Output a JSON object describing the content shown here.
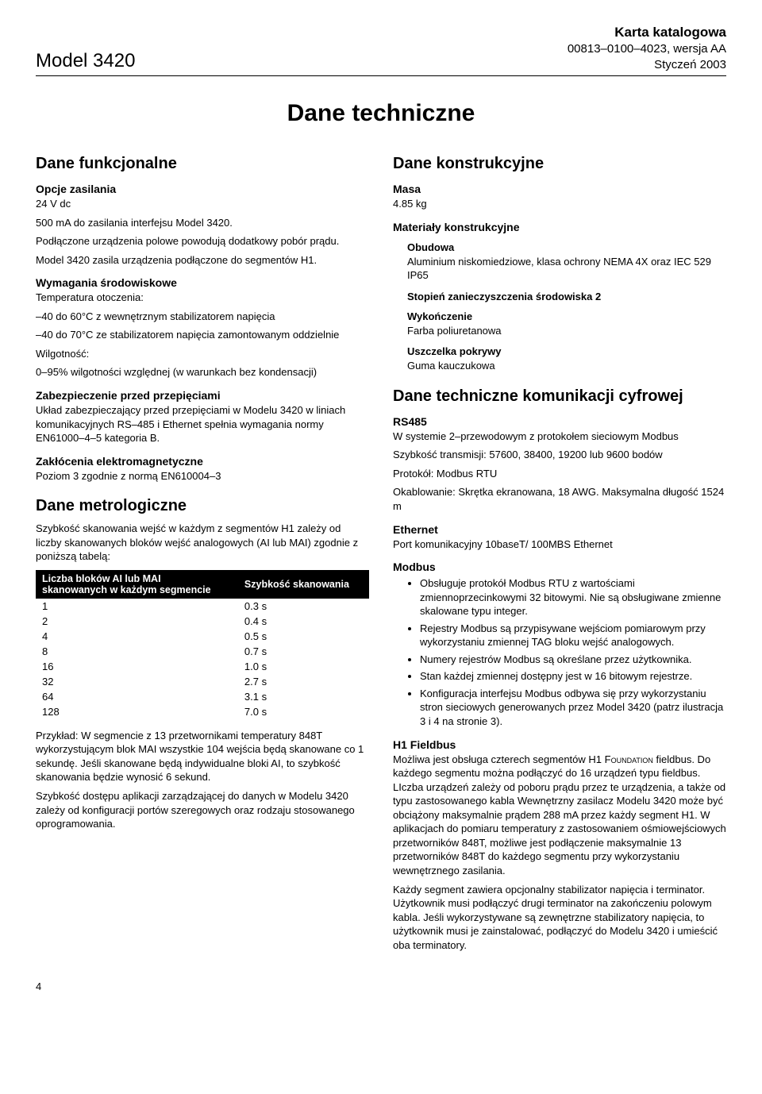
{
  "header": {
    "model": "Model 3420",
    "catalog_title": "Karta katalogowa",
    "doc_number": "00813–0100–4023, wersja AA",
    "date": "Styczeń 2003"
  },
  "main_title": "Dane techniczne",
  "left": {
    "s1_title": "Dane funkcjonalne",
    "s1_h1": "Opcje zasilania",
    "s1_p1": "24 V dc",
    "s1_p2": "500 mA do zasilania interfejsu Model 3420.",
    "s1_p3": "Podłączone urządzenia polowe powodują dodatkowy pobór prądu.",
    "s1_p4": "Model 3420 zasila urządzenia podłączone do segmentów H1.",
    "s1_h2": "Wymagania środowiskowe",
    "s1_p5": "Temperatura otoczenia:",
    "s1_p6": "–40 do 60°C z wewnętrznym stabilizatorem napięcia",
    "s1_p7": "–40 do 70°C ze stabilizatorem napięcia zamontowanym oddzielnie",
    "s1_p8": "Wilgotność:",
    "s1_p9": "0–95% wilgotności względnej (w warunkach bez kondensacji)",
    "s1_h3": "Zabezpieczenie przed przepięciami",
    "s1_p10": "Układ zabezpieczający przed przepięciami w Modelu 3420 w liniach komunikacyjnych RS–485 i Ethernet spełnia wymagania normy EN61000–4–5 kategoria B.",
    "s1_h4": "Zakłócenia elektromagnetyczne",
    "s1_p11": "Poziom 3 zgodnie z normą EN610004–3",
    "s2_title": "Dane metrologiczne",
    "s2_p1": "Szybkość skanowania wejść w każdym z segmentów H1 zależy od liczby skanowanych bloków wejść analogowych (AI lub MAI) zgodnie z poniższą tabelą:",
    "table": {
      "col1_header_l1": "Liczba bloków AI lub MAI",
      "col1_header_l2": "skanowanych w każdym segmencie",
      "col2_header": "Szybkość skanowania",
      "rows": [
        [
          "1",
          "0.3 s"
        ],
        [
          "2",
          "0.4 s"
        ],
        [
          "4",
          "0.5 s"
        ],
        [
          "8",
          "0.7 s"
        ],
        [
          "16",
          "1.0 s"
        ],
        [
          "32",
          "2.7 s"
        ],
        [
          "64",
          "3.1 s"
        ],
        [
          "128",
          "7.0 s"
        ]
      ]
    },
    "s2_p2": "Przykład: W segmencie z 13 przetwornikami temperatury 848T wykorzystującym blok MAI wszystkie 104 wejścia będą skanowane co 1 sekundę. Jeśli skanowane będą indywidualne bloki AI, to szybkość skanowania będzie wynosić 6 sekund.",
    "s2_p3": "Szybkość dostępu aplikacji zarządzającej do danych w Modelu 3420 zależy od konfiguracji portów szeregowych oraz rodzaju stosowanego oprogramowania."
  },
  "right": {
    "s3_title": "Dane konstrukcyjne",
    "s3_h1": "Masa",
    "s3_p1": "4.85 kg",
    "s3_h2": "Materiały konstrukcyjne",
    "s3_h3": "Obudowa",
    "s3_p2": "Aluminium niskomiedziowe, klasa ochrony NEMA 4X oraz IEC 529 IP65",
    "s3_h4": "Stopień zanieczyszczenia środowiska 2",
    "s3_h5": "Wykończenie",
    "s3_p3": "Farba poliuretanowa",
    "s3_h6": "Uszczelka pokrywy",
    "s3_p4": "Guma kauczukowa",
    "s4_title": "Dane techniczne komunikacji cyfrowej",
    "s4_h1": "RS485",
    "s4_p1": "W systemie 2–przewodowym z protokołem sieciowym Modbus",
    "s4_p2": "Szybkość transmisji: 57600, 38400, 19200 lub 9600 bodów",
    "s4_p3": "Protokół: Modbus RTU",
    "s4_p4": "Okablowanie: Skrętka ekranowana, 18 AWG. Maksymalna długość 1524 m",
    "s4_h2": "Ethernet",
    "s4_p5": "Port komunikacyjny 10baseT/ 100MBS Ethernet",
    "s4_h3": "Modbus",
    "s4_bullets": [
      "Obsługuje protokół Modbus RTU z wartościami zmiennoprzecinkowymi 32 bitowymi. Nie są obsługiwane zmienne skalowane typu integer.",
      "Rejestry Modbus są przypisywane wejściom pomiarowym przy wykorzystaniu zmiennej TAG bloku wejść analogowych.",
      "Numery rejestrów Modbus są określane przez użytkownika.",
      "Stan każdej zmiennej dostępny jest w 16 bitowym rejestrze.",
      "Konfiguracja interfejsu Modbus odbywa się przy wykorzystaniu stron sieciowych generowanych przez Model 3420 (patrz ilustracja 3 i 4 na stronie 3)."
    ],
    "s4_h4": "H1 Fieldbus",
    "s4_p6_pre": "Możliwa jest obsługa czterech segmentów H1 ",
    "s4_p6_foundation": "Foundation",
    "s4_p6_post": " fieldbus. Do każdego segmentu można podłączyć do 16 urządzeń typu fieldbus. LIczba urządzeń zależy od poboru prądu przez te urządzenia, a także od typu zastosowanego kabla Wewnętrzny zasilacz Modelu 3420 może być obciążony maksymalnie prądem 288 mA przez każdy segment H1. W aplikacjach do pomiaru temperatury z zastosowaniem ośmiowejściowych przetworników 848T, możliwe jest podłączenie maksymalnie 13 przetworników 848T do każdego segmentu przy wykorzystaniu wewnętrznego zasilania.",
    "s4_p7": "Każdy segment zawiera opcjonalny stabilizator napięcia i terminator. Użytkownik musi podłączyć drugi terminator na zakończeniu polowym kabla. Jeśli wykorzystywane są zewnętrzne stabilizatory napięcia, to użytkownik musi je zainstalować, podłączyć do Modelu 3420 i umieścić oba terminatory."
  },
  "page_number": "4"
}
